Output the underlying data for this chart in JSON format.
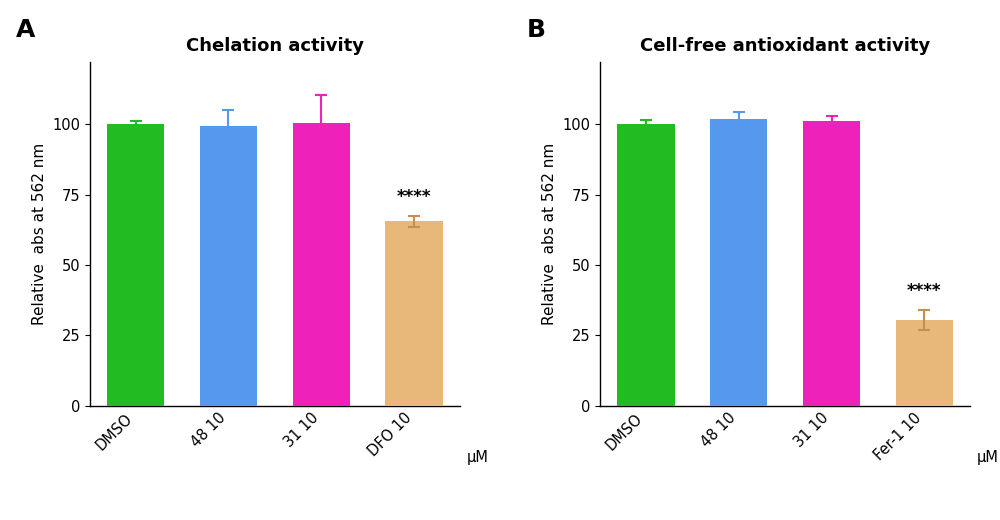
{
  "panel_A": {
    "title": "Chelation activity",
    "categories": [
      "DMSO",
      "48 10",
      "31 10",
      "DFO 10"
    ],
    "values": [
      100.0,
      99.5,
      100.5,
      65.5
    ],
    "errors": [
      1.2,
      5.5,
      10.0,
      2.0
    ],
    "bar_colors": [
      "#22BB22",
      "#5599EE",
      "#EE22BB",
      "#E8B87A"
    ],
    "error_colors": [
      "#22BB22",
      "#5599EE",
      "#EE22BB",
      "#C49050"
    ],
    "significance": [
      null,
      null,
      null,
      "****"
    ],
    "ylabel": "Relative  abs at 562 nm",
    "xlabel_unit": "μM",
    "ylim": [
      0,
      122
    ],
    "yticks": [
      0,
      25,
      50,
      75,
      100
    ]
  },
  "panel_B": {
    "title": "Cell-free antioxidant activity",
    "categories": [
      "DMSO",
      "48 10",
      "31 10",
      "Fer-1 10"
    ],
    "values": [
      100.0,
      102.0,
      101.0,
      30.5
    ],
    "errors": [
      1.5,
      2.5,
      2.0,
      3.5
    ],
    "bar_colors": [
      "#22BB22",
      "#5599EE",
      "#EE22BB",
      "#E8B87A"
    ],
    "error_colors": [
      "#22BB22",
      "#5599EE",
      "#EE22BB",
      "#C49050"
    ],
    "significance": [
      null,
      null,
      null,
      "****"
    ],
    "ylabel": "Relative  abs at 562 nm",
    "xlabel_unit": "μM",
    "ylim": [
      0,
      122
    ],
    "yticks": [
      0,
      25,
      50,
      75,
      100
    ]
  },
  "panel_labels": [
    "A",
    "B"
  ],
  "title_fontsize": 13,
  "label_fontsize": 11,
  "tick_fontsize": 10.5,
  "panel_label_fontsize": 18,
  "sig_fontsize": 12,
  "bar_width": 0.62,
  "background_color": "#ffffff"
}
